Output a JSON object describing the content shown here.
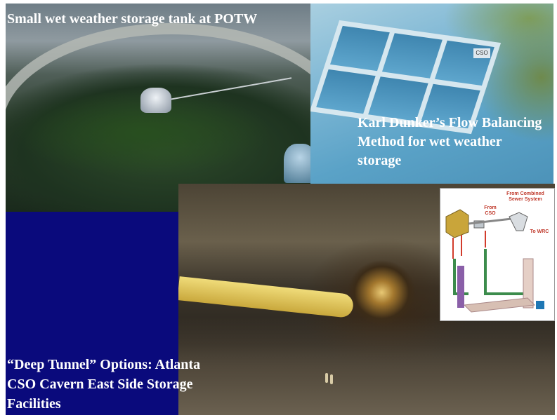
{
  "captions": {
    "tank": "Small  wet weather storage tank at POTW",
    "flow": "Karl Dunker’s Flow Balancing Method for wet weather storage",
    "tunnel": "“Deep Tunnel” Options: Atlanta CSO Cavern East Side Storage Facilities"
  },
  "diagram": {
    "from_cso": "From CSO",
    "from_combined": "From Combined Sewer System",
    "to_wrc": "To WRC"
  },
  "flow_labels": {
    "cso": "CSO"
  },
  "colors": {
    "background": "#ffffff",
    "blue_panel": "#0a0a7c",
    "caption_text": "#ffffff"
  }
}
